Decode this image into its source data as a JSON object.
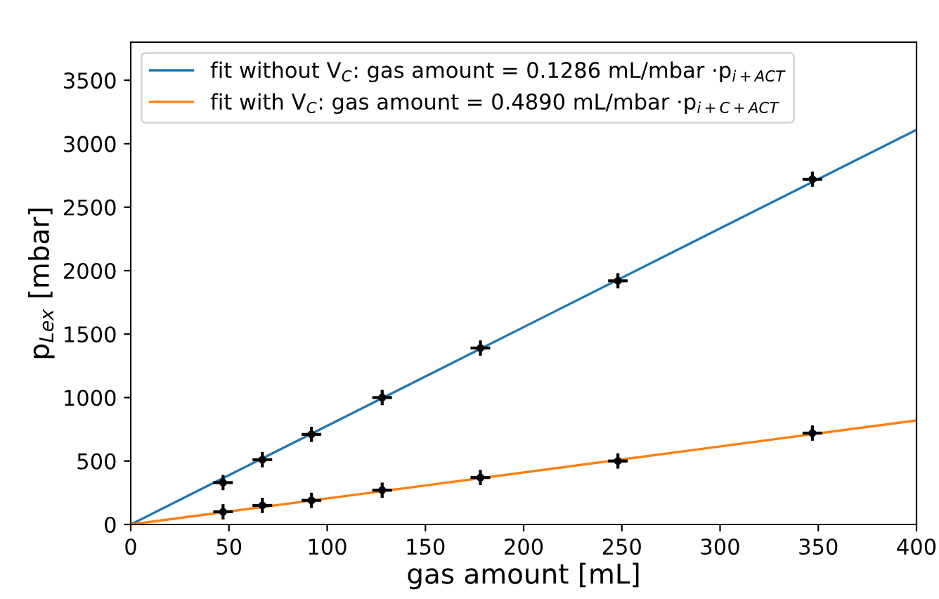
{
  "chart_data": {
    "type": "line",
    "xlabel": "gas amount [mL]",
    "ylabel": "p$_{Lex}$ [mbar]",
    "xlim": [
      0,
      400
    ],
    "ylim": [
      0,
      3800
    ],
    "xticks": [
      0,
      50,
      100,
      150,
      200,
      250,
      300,
      350,
      400
    ],
    "yticks": [
      0,
      500,
      1000,
      1500,
      2000,
      2500,
      3000,
      3500
    ],
    "grid": false,
    "legend": "top left",
    "marker": "circle",
    "line_style": "solid",
    "series": [
      {
        "name": "fit without V$_{C}$: gas amount = 0.1286 mL/mbar ·p$_{i+ACT}$",
        "color": "#1f77b4",
        "marker": "none",
        "x": [
          0,
          400
        ],
        "values": [
          0,
          3110
        ]
      },
      {
        "name": "fit with V$_{C}$: gas amount = 0.4890 mL/mbar ·p$_{i+C+ACT}$",
        "color": "#ff7f0e",
        "marker": "none",
        "x": [
          0,
          400
        ],
        "values": [
          0,
          820
        ]
      },
      {
        "type": "scatter",
        "color": "#000000",
        "x": [
          47,
          67,
          92,
          128,
          178,
          248,
          347
        ],
        "values": [
          330,
          510,
          710,
          1000,
          1390,
          1920,
          2720
        ],
        "errors": [
          60,
          60,
          60,
          60,
          60,
          60,
          60
        ],
        "xerrors": [
          5,
          5,
          5,
          5,
          5,
          5,
          5
        ]
      },
      {
        "type": "scatter",
        "color": "#000000",
        "x": [
          47,
          67,
          92,
          128,
          178,
          248,
          347
        ],
        "values": [
          100,
          150,
          190,
          270,
          370,
          500,
          720
        ],
        "errors": [
          60,
          60,
          60,
          60,
          60,
          60,
          60
        ],
        "xerrors": [
          5,
          5,
          5,
          5,
          5,
          5,
          5
        ]
      }
    ]
  }
}
